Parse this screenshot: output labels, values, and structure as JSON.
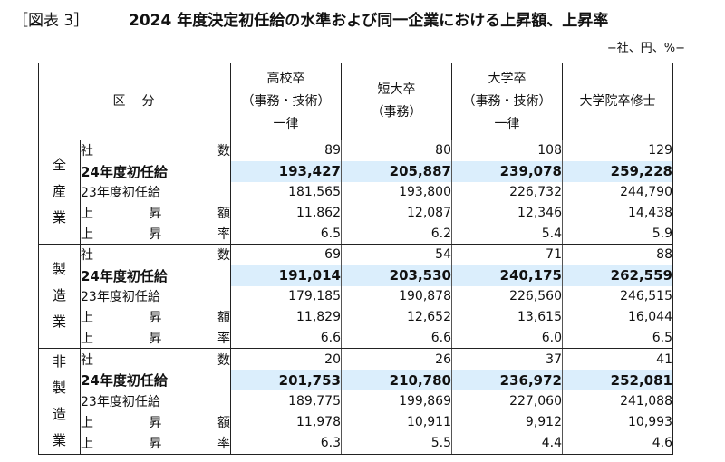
{
  "figure": {
    "label": "［図表 3］",
    "title": "2024 年度決定初任給の水準および同一企業における上昇額、上昇率",
    "unit_note": "−社、円、%−"
  },
  "table": {
    "header": {
      "kubun": [
        "区",
        "分"
      ],
      "columns": [
        [
          "高校卒",
          "（事務・技術）",
          "一律"
        ],
        [
          "短大卒",
          "（事務）"
        ],
        [
          "大学卒",
          "（事務・技術）",
          "一律"
        ],
        [
          "大学院卒修士"
        ]
      ]
    },
    "row_labels": [
      [
        "社",
        "数"
      ],
      [
        "24年度初任給"
      ],
      [
        "23年度初任給"
      ],
      [
        "上",
        "昇",
        "額"
      ],
      [
        "上",
        "昇",
        "率"
      ]
    ],
    "groups": [
      {
        "name": [
          "全",
          "産",
          "業"
        ],
        "rows": [
          [
            "89",
            "80",
            "108",
            "129"
          ],
          [
            "193,427",
            "205,887",
            "239,078",
            "259,228"
          ],
          [
            "181,565",
            "193,800",
            "226,732",
            "244,790"
          ],
          [
            "11,862",
            "12,087",
            "12,346",
            "14,438"
          ],
          [
            "6.5",
            "6.2",
            "5.4",
            "5.9"
          ]
        ]
      },
      {
        "name": [
          "製",
          "造",
          "業"
        ],
        "rows": [
          [
            "69",
            "54",
            "71",
            "88"
          ],
          [
            "191,014",
            "203,530",
            "240,175",
            "262,559"
          ],
          [
            "179,185",
            "190,878",
            "226,560",
            "246,515"
          ],
          [
            "11,829",
            "12,652",
            "13,615",
            "16,044"
          ],
          [
            "6.6",
            "6.6",
            "6.0",
            "6.5"
          ]
        ]
      },
      {
        "name": [
          "非",
          "製",
          "造",
          "業"
        ],
        "rows": [
          [
            "20",
            "26",
            "37",
            "41"
          ],
          [
            "201,753",
            "210,780",
            "236,972",
            "252,081"
          ],
          [
            "189,775",
            "199,869",
            "227,060",
            "241,088"
          ],
          [
            "11,978",
            "10,911",
            "9,912",
            "10,993"
          ],
          [
            "6.3",
            "5.5",
            "4.4",
            "4.6"
          ]
        ]
      }
    ]
  }
}
